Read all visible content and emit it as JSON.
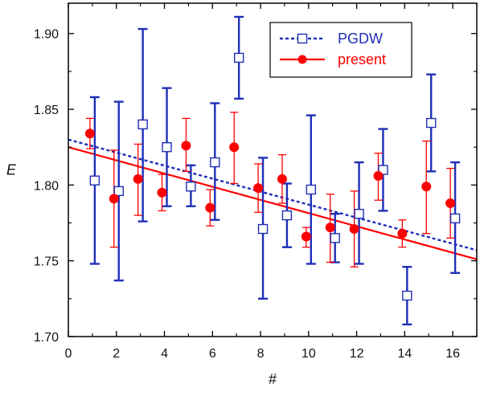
{
  "chart_data": {
    "type": "scatter",
    "xlabel": "#",
    "ylabel": "E",
    "xlim": [
      0,
      17
    ],
    "ylim": [
      1.7,
      1.92
    ],
    "x_ticks": [
      0,
      2,
      4,
      6,
      8,
      10,
      12,
      14,
      16
    ],
    "x_tick_labels": [
      "0",
      "2",
      "4",
      "6",
      "8",
      "10",
      "12",
      "14",
      "16"
    ],
    "y_ticks": [
      1.7,
      1.75,
      1.8,
      1.85,
      1.9
    ],
    "y_tick_labels": [
      "1.70",
      "1.75",
      "1.80",
      "1.85",
      "1.90"
    ],
    "grid": false,
    "legend": {
      "placement": "top-right"
    },
    "series": [
      {
        "name": "PGDW",
        "marker": "open-square",
        "color": "#1f2fb8",
        "points": [
          {
            "x": 1.1,
            "y": 1.803,
            "ylow": 1.748,
            "yhigh": 1.858
          },
          {
            "x": 2.1,
            "y": 1.796,
            "ylow": 1.737,
            "yhigh": 1.855
          },
          {
            "x": 3.1,
            "y": 1.84,
            "ylow": 1.776,
            "yhigh": 1.903
          },
          {
            "x": 4.1,
            "y": 1.825,
            "ylow": 1.786,
            "yhigh": 1.864
          },
          {
            "x": 5.1,
            "y": 1.799,
            "ylow": 1.786,
            "yhigh": 1.813
          },
          {
            "x": 6.1,
            "y": 1.815,
            "ylow": 1.777,
            "yhigh": 1.854
          },
          {
            "x": 7.1,
            "y": 1.884,
            "ylow": 1.857,
            "yhigh": 1.911
          },
          {
            "x": 8.1,
            "y": 1.771,
            "ylow": 1.725,
            "yhigh": 1.818
          },
          {
            "x": 9.1,
            "y": 1.78,
            "ylow": 1.759,
            "yhigh": 1.801
          },
          {
            "x": 10.1,
            "y": 1.797,
            "ylow": 1.748,
            "yhigh": 1.846
          },
          {
            "x": 11.1,
            "y": 1.765,
            "ylow": 1.749,
            "yhigh": 1.781
          },
          {
            "x": 12.1,
            "y": 1.781,
            "ylow": 1.748,
            "yhigh": 1.815
          },
          {
            "x": 13.1,
            "y": 1.81,
            "ylow": 1.783,
            "yhigh": 1.837
          },
          {
            "x": 14.1,
            "y": 1.727,
            "ylow": 1.708,
            "yhigh": 1.746
          },
          {
            "x": 15.1,
            "y": 1.841,
            "ylow": 1.809,
            "yhigh": 1.873
          },
          {
            "x": 16.1,
            "y": 1.778,
            "ylow": 1.742,
            "yhigh": 1.815
          }
        ],
        "fit": {
          "style": "dotted",
          "x": [
            0,
            17
          ],
          "y": [
            1.83,
            1.757
          ]
        }
      },
      {
        "name": "present",
        "marker": "filled-circle",
        "color": "#ff0000",
        "points": [
          {
            "x": 0.9,
            "y": 1.834,
            "ylow": 1.824,
            "yhigh": 1.844
          },
          {
            "x": 1.9,
            "y": 1.791,
            "ylow": 1.759,
            "yhigh": 1.823
          },
          {
            "x": 2.9,
            "y": 1.804,
            "ylow": 1.78,
            "yhigh": 1.827
          },
          {
            "x": 3.9,
            "y": 1.795,
            "ylow": 1.783,
            "yhigh": 1.807
          },
          {
            "x": 4.9,
            "y": 1.826,
            "ylow": 1.809,
            "yhigh": 1.844
          },
          {
            "x": 5.9,
            "y": 1.785,
            "ylow": 1.773,
            "yhigh": 1.797
          },
          {
            "x": 6.9,
            "y": 1.825,
            "ylow": 1.801,
            "yhigh": 1.848
          },
          {
            "x": 7.9,
            "y": 1.798,
            "ylow": 1.782,
            "yhigh": 1.814
          },
          {
            "x": 8.9,
            "y": 1.804,
            "ylow": 1.788,
            "yhigh": 1.82
          },
          {
            "x": 9.9,
            "y": 1.766,
            "ylow": 1.759,
            "yhigh": 1.772
          },
          {
            "x": 10.9,
            "y": 1.772,
            "ylow": 1.749,
            "yhigh": 1.794
          },
          {
            "x": 11.9,
            "y": 1.771,
            "ylow": 1.746,
            "yhigh": 1.796
          },
          {
            "x": 12.9,
            "y": 1.806,
            "ylow": 1.79,
            "yhigh": 1.821
          },
          {
            "x": 13.9,
            "y": 1.768,
            "ylow": 1.759,
            "yhigh": 1.777
          },
          {
            "x": 14.9,
            "y": 1.799,
            "ylow": 1.768,
            "yhigh": 1.829
          },
          {
            "x": 15.9,
            "y": 1.788,
            "ylow": 1.765,
            "yhigh": 1.811
          }
        ],
        "fit": {
          "style": "solid",
          "x": [
            0,
            17
          ],
          "y": [
            1.825,
            1.751
          ]
        }
      }
    ]
  }
}
